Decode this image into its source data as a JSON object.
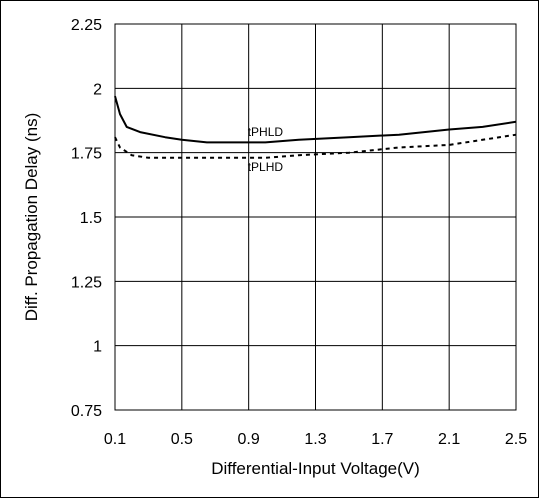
{
  "chart_data": {
    "type": "line",
    "title": "",
    "xlabel": "Differential-Input Voltage(V)",
    "ylabel": "Diff. Propagation Delay (ns)",
    "xlim": [
      0.1,
      2.5
    ],
    "ylim": [
      0.75,
      2.25
    ],
    "x_ticks": [
      0.1,
      0.5,
      0.9,
      1.3,
      1.7,
      2.1,
      2.5
    ],
    "x_tick_labels": [
      "0.1",
      "0.5",
      "0.9",
      "1.3",
      "1.7",
      "2.1",
      "2.5"
    ],
    "y_ticks": [
      0.75,
      1,
      1.25,
      1.5,
      1.75,
      2,
      2.25
    ],
    "y_tick_labels": [
      "0.75",
      "1",
      "1.25",
      "1.5",
      "1.75",
      "2",
      "2.25"
    ],
    "grid": true,
    "series": [
      {
        "name": "tPHLD",
        "style": "solid",
        "color": "#000000",
        "x": [
          0.1,
          0.13,
          0.17,
          0.25,
          0.4,
          0.5,
          0.65,
          0.8,
          0.9,
          1.0,
          1.2,
          1.5,
          1.8,
          2.1,
          2.3,
          2.5
        ],
        "y": [
          1.97,
          1.9,
          1.85,
          1.83,
          1.81,
          1.8,
          1.79,
          1.79,
          1.79,
          1.79,
          1.8,
          1.81,
          1.82,
          1.84,
          1.85,
          1.87
        ]
      },
      {
        "name": "tPLHD",
        "style": "dashed",
        "color": "#000000",
        "x": [
          0.1,
          0.13,
          0.2,
          0.3,
          0.5,
          0.8,
          1.0,
          1.2,
          1.5,
          1.8,
          2.1,
          2.3,
          2.5
        ],
        "y": [
          1.81,
          1.77,
          1.74,
          1.73,
          1.73,
          1.73,
          1.73,
          1.74,
          1.75,
          1.77,
          1.78,
          1.8,
          1.82
        ]
      }
    ],
    "annotations": [
      {
        "text": "tPHLD",
        "x": 1.0,
        "y": 1.83
      },
      {
        "text": "tPLHD",
        "x": 1.0,
        "y": 1.695
      }
    ]
  }
}
